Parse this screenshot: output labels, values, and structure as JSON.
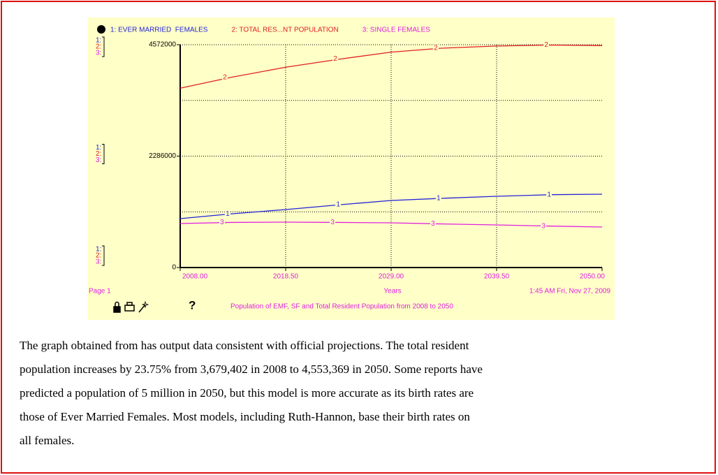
{
  "chart_data": {
    "type": "line",
    "series": [
      {
        "name": "1: EVER MARRIED  FEMALES",
        "marker": "1",
        "color": "#2323d8",
        "x": [
          2008,
          2013,
          2018.5,
          2024,
          2029,
          2034,
          2039.5,
          2045,
          2050
        ],
        "values": [
          1003000,
          1100000,
          1190000,
          1290000,
          1376000,
          1420000,
          1462000,
          1495000,
          1505000
        ]
      },
      {
        "name": "2: TOTAL RES...NT POPULATION",
        "marker": "2",
        "color": "#e02020",
        "x": [
          2008,
          2013,
          2018.5,
          2024,
          2029,
          2034,
          2039.5,
          2045,
          2050
        ],
        "values": [
          3679402,
          3900000,
          4110000,
          4280000,
          4420000,
          4500000,
          4545000,
          4565000,
          4553369
        ]
      },
      {
        "name": "3: SINGLE FEMALES",
        "marker": "3",
        "color": "#e020e0",
        "x": [
          2008,
          2013,
          2018.5,
          2024,
          2029,
          2034,
          2039.5,
          2045,
          2050
        ],
        "values": [
          903000,
          925000,
          932000,
          925000,
          917000,
          895000,
          874000,
          850000,
          831000
        ]
      }
    ],
    "xlim": [
      2008,
      2050
    ],
    "xticks": [
      {
        "value": 2008,
        "label": "2008.00"
      },
      {
        "value": 2018.5,
        "label": "2018.50"
      },
      {
        "value": 2029,
        "label": "2029.00"
      },
      {
        "value": 2039.5,
        "label": "2039.50"
      },
      {
        "value": 2050,
        "label": "2050.00"
      }
    ],
    "ylim": [
      0,
      4572000
    ],
    "yticks": [
      0,
      2286000,
      4572000
    ],
    "grid": true,
    "axis_markers": [
      "1:",
      "2:",
      "3:"
    ],
    "xlabel": "Years",
    "page": "Page 1",
    "timestamp": "1:45 AM  Fri, Nov 27, 2009",
    "help": "?",
    "caption": "Population of EMF, SF and Total Resident Population  from 2008 to 2050"
  },
  "paragraph": [
    "The graph obtained from has output data consistent with official projections. The total resident",
    "population increases  by 23.75% from 3,679,402 in 2008 to 4,553,369 in 2050. Some reports have",
    "predicted a population of 5 million  in 2050, but this model is more accurate as its birth rates are",
    "those of Ever Married Females.  Most models, including Ruth-Hannon, base their birth rates on",
    "all females."
  ]
}
